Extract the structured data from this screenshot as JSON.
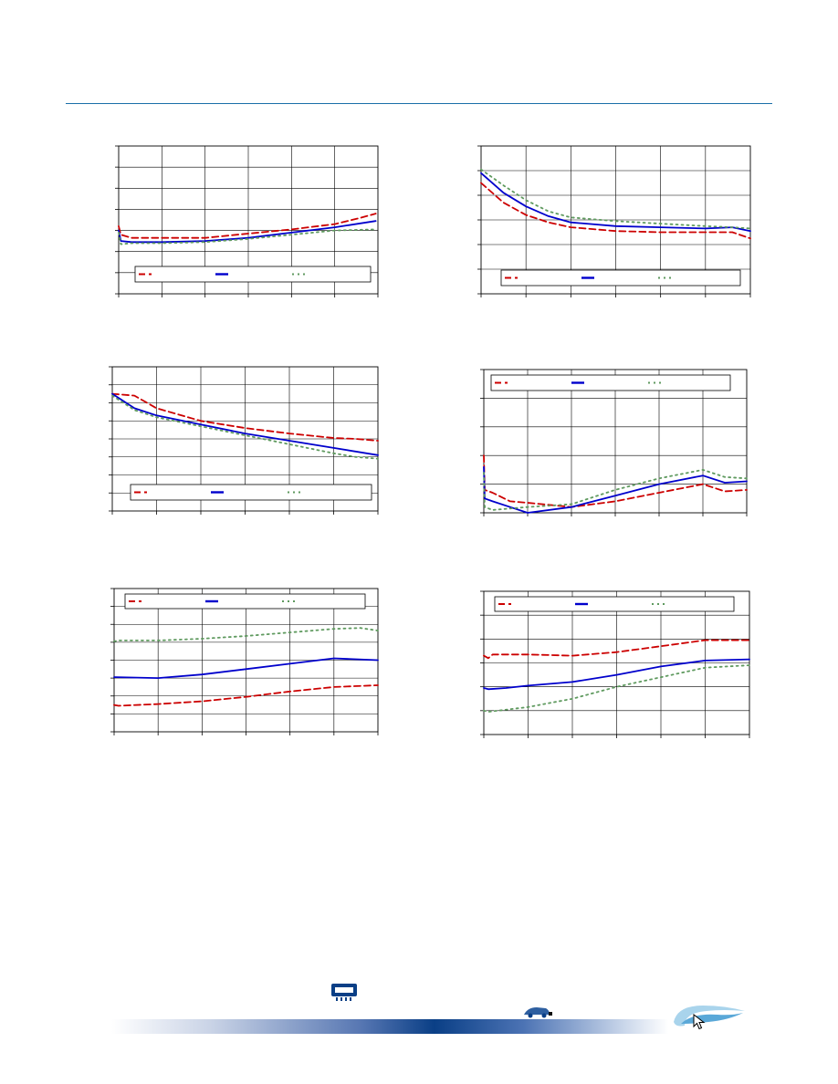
{
  "colors": {
    "accent_rule": "#1a6fa8",
    "series_red": "#cc0000",
    "series_blue": "#0000cc",
    "series_green": "#5f9a5f",
    "grid": "#000000",
    "footer_dark": "#0a3f86"
  },
  "footer": {
    "icons": [
      "chip-icon",
      "car-logo-icon",
      "swoosh-logo-icon",
      "cursor-icon"
    ]
  },
  "chart_data": [
    {
      "type": "line",
      "xlim": [
        0,
        6
      ],
      "ylim": [
        0,
        7
      ],
      "grid": true,
      "legend": "bottom",
      "series": [
        {
          "values": [
            [
              0,
              3.2
            ],
            [
              0.05,
              2.8
            ],
            [
              0.3,
              2.65
            ],
            [
              1,
              2.65
            ],
            [
              2,
              2.65
            ],
            [
              3,
              2.85
            ],
            [
              4,
              3.05
            ],
            [
              5,
              3.3
            ],
            [
              5.6,
              3.6
            ],
            [
              5.95,
              3.8
            ]
          ]
        },
        {
          "values": [
            [
              0,
              3.0
            ],
            [
              0.05,
              2.5
            ],
            [
              0.3,
              2.45
            ],
            [
              1,
              2.45
            ],
            [
              2,
              2.5
            ],
            [
              3,
              2.65
            ],
            [
              4,
              2.9
            ],
            [
              5,
              3.15
            ],
            [
              5.95,
              3.45
            ]
          ]
        },
        {
          "values": [
            [
              0,
              2.9
            ],
            [
              0.05,
              2.35
            ],
            [
              0.3,
              2.4
            ],
            [
              1,
              2.4
            ],
            [
              2,
              2.45
            ],
            [
              3,
              2.6
            ],
            [
              4,
              2.8
            ],
            [
              5,
              3.0
            ],
            [
              5.95,
              3.05
            ]
          ]
        }
      ]
    },
    {
      "type": "line",
      "xlim": [
        0,
        6
      ],
      "ylim": [
        0,
        6
      ],
      "grid": true,
      "legend": "bottom",
      "series": [
        {
          "values": [
            [
              0,
              4.5
            ],
            [
              0.5,
              3.7
            ],
            [
              1,
              3.2
            ],
            [
              1.5,
              2.9
            ],
            [
              2,
              2.7
            ],
            [
              3,
              2.55
            ],
            [
              4,
              2.5
            ],
            [
              5,
              2.5
            ],
            [
              5.6,
              2.5
            ],
            [
              6,
              2.25
            ]
          ]
        },
        {
          "values": [
            [
              0,
              4.9
            ],
            [
              0.5,
              4.1
            ],
            [
              1,
              3.55
            ],
            [
              1.5,
              3.15
            ],
            [
              2,
              2.9
            ],
            [
              3,
              2.75
            ],
            [
              4,
              2.7
            ],
            [
              5,
              2.65
            ],
            [
              5.6,
              2.7
            ],
            [
              6,
              2.55
            ]
          ]
        },
        {
          "values": [
            [
              0,
              5.05
            ],
            [
              0.5,
              4.4
            ],
            [
              1,
              3.8
            ],
            [
              1.5,
              3.35
            ],
            [
              2,
              3.1
            ],
            [
              3,
              2.95
            ],
            [
              4,
              2.85
            ],
            [
              5,
              2.75
            ],
            [
              5.6,
              2.7
            ],
            [
              6,
              2.65
            ]
          ]
        }
      ]
    },
    {
      "type": "line",
      "xlim": [
        0,
        6
      ],
      "ylim": [
        0,
        8
      ],
      "grid": true,
      "legend": "bottom",
      "series": [
        {
          "values": [
            [
              0,
              6.5
            ],
            [
              0.5,
              6.4
            ],
            [
              1,
              5.7
            ],
            [
              2,
              5.0
            ],
            [
              3,
              4.6
            ],
            [
              4,
              4.3
            ],
            [
              5,
              4.05
            ],
            [
              5.5,
              4.0
            ],
            [
              6,
              3.9
            ]
          ]
        },
        {
          "values": [
            [
              0,
              6.5
            ],
            [
              0.5,
              5.7
            ],
            [
              1,
              5.3
            ],
            [
              2,
              4.8
            ],
            [
              3,
              4.3
            ],
            [
              4,
              3.9
            ],
            [
              5,
              3.5
            ],
            [
              6,
              3.1
            ]
          ]
        },
        {
          "values": [
            [
              0,
              6.4
            ],
            [
              0.5,
              5.6
            ],
            [
              1,
              5.2
            ],
            [
              2,
              4.7
            ],
            [
              3,
              4.2
            ],
            [
              4,
              3.7
            ],
            [
              5,
              3.2
            ],
            [
              5.5,
              3.0
            ],
            [
              6,
              2.9
            ]
          ]
        }
      ]
    },
    {
      "type": "line",
      "xlim": [
        0,
        6
      ],
      "ylim": [
        0,
        5
      ],
      "grid": true,
      "legend": "top",
      "series": [
        {
          "values": [
            [
              0,
              2.0
            ],
            [
              0.02,
              0.8
            ],
            [
              0.2,
              0.7
            ],
            [
              0.6,
              0.4
            ],
            [
              1,
              0.35
            ],
            [
              2,
              0.2
            ],
            [
              3,
              0.4
            ],
            [
              4,
              0.7
            ],
            [
              5,
              1.0
            ],
            [
              5.5,
              0.75
            ],
            [
              6,
              0.8
            ]
          ]
        },
        {
          "values": [
            [
              0,
              1.6
            ],
            [
              0.02,
              0.5
            ],
            [
              0.2,
              0.4
            ],
            [
              0.6,
              0.2
            ],
            [
              1,
              0.0
            ],
            [
              2,
              0.2
            ],
            [
              3,
              0.6
            ],
            [
              4,
              1.0
            ],
            [
              5,
              1.3
            ],
            [
              5.5,
              1.05
            ],
            [
              6,
              1.1
            ]
          ]
        },
        {
          "values": [
            [
              0,
              1.4
            ],
            [
              0.02,
              0.2
            ],
            [
              0.2,
              0.1
            ],
            [
              0.6,
              0.15
            ],
            [
              1,
              0.2
            ],
            [
              2,
              0.3
            ],
            [
              3,
              0.8
            ],
            [
              4,
              1.2
            ],
            [
              5,
              1.5
            ],
            [
              5.5,
              1.25
            ],
            [
              6,
              1.2
            ]
          ]
        }
      ]
    },
    {
      "type": "line",
      "xlim": [
        0,
        6
      ],
      "ylim": [
        0,
        8
      ],
      "grid": true,
      "legend": "top",
      "series": [
        {
          "values": [
            [
              0,
              1.5
            ],
            [
              0.1,
              1.45
            ],
            [
              1,
              1.55
            ],
            [
              2,
              1.7
            ],
            [
              3,
              1.95
            ],
            [
              4,
              2.25
            ],
            [
              5,
              2.5
            ],
            [
              6,
              2.6
            ]
          ]
        },
        {
          "values": [
            [
              0,
              3.05
            ],
            [
              1,
              3.0
            ],
            [
              2,
              3.2
            ],
            [
              3,
              3.5
            ],
            [
              4,
              3.8
            ],
            [
              5,
              4.1
            ],
            [
              6,
              4.0
            ]
          ]
        },
        {
          "values": [
            [
              0,
              5.05
            ],
            [
              0.1,
              5.1
            ],
            [
              1,
              5.1
            ],
            [
              2,
              5.2
            ],
            [
              3,
              5.35
            ],
            [
              4,
              5.55
            ],
            [
              5,
              5.75
            ],
            [
              5.6,
              5.8
            ],
            [
              6,
              5.65
            ]
          ]
        }
      ]
    },
    {
      "type": "line",
      "xlim": [
        0,
        6
      ],
      "ylim": [
        0,
        6
      ],
      "grid": true,
      "legend": "top",
      "series": [
        {
          "values": [
            [
              0,
              3.3
            ],
            [
              0.1,
              3.2
            ],
            [
              0.2,
              3.35
            ],
            [
              1,
              3.35
            ],
            [
              2,
              3.3
            ],
            [
              3,
              3.45
            ],
            [
              4,
              3.7
            ],
            [
              5,
              3.95
            ],
            [
              6,
              3.95
            ]
          ]
        },
        {
          "values": [
            [
              0,
              1.95
            ],
            [
              0.1,
              1.9
            ],
            [
              0.5,
              1.95
            ],
            [
              1,
              2.05
            ],
            [
              2,
              2.2
            ],
            [
              3,
              2.5
            ],
            [
              4,
              2.85
            ],
            [
              5,
              3.1
            ],
            [
              6,
              3.15
            ]
          ]
        },
        {
          "values": [
            [
              0,
              1.0
            ],
            [
              0.1,
              0.95
            ],
            [
              1,
              1.15
            ],
            [
              2,
              1.5
            ],
            [
              3,
              2.0
            ],
            [
              4,
              2.4
            ],
            [
              5,
              2.8
            ],
            [
              6,
              2.9
            ]
          ]
        }
      ]
    }
  ]
}
